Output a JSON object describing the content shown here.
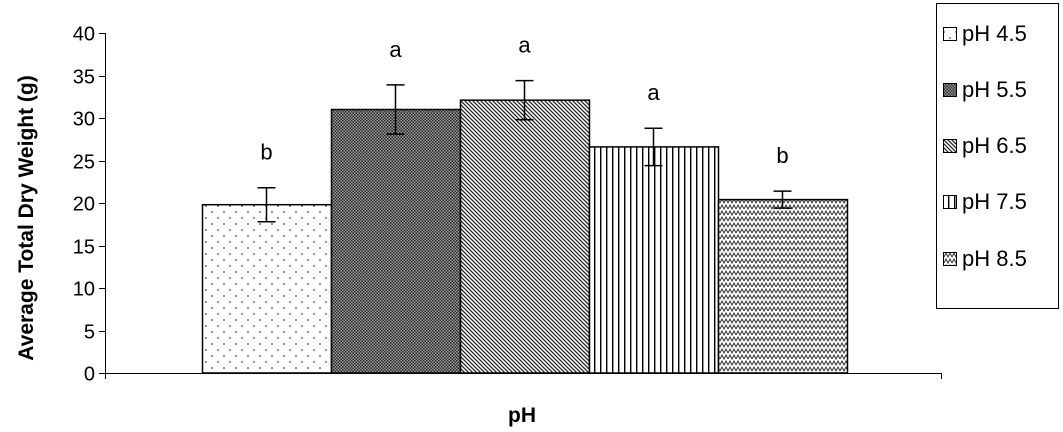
{
  "chart_data": {
    "type": "bar",
    "title": "",
    "xlabel": "pH",
    "ylabel": "Average Total Dry Weight (g)",
    "ylim": [
      0,
      40
    ],
    "yticks": [
      0,
      5,
      10,
      15,
      20,
      25,
      30,
      35,
      40
    ],
    "grid": false,
    "legend_position": "right",
    "series": [
      {
        "name": "pH 4.5",
        "value": 19.8,
        "error": 2.0,
        "significance": "b",
        "pattern": "dots"
      },
      {
        "name": "pH 5.5",
        "value": 31.0,
        "error": 2.9,
        "significance": "a",
        "pattern": "crosshatch"
      },
      {
        "name": "pH 6.5",
        "value": 32.1,
        "error": 2.3,
        "significance": "a",
        "pattern": "diagonal"
      },
      {
        "name": "pH 7.5",
        "value": 26.6,
        "error": 2.2,
        "significance": "a",
        "pattern": "vertical"
      },
      {
        "name": "pH 8.5",
        "value": 20.4,
        "error": 1.0,
        "significance": "b",
        "pattern": "zigzag"
      }
    ]
  }
}
